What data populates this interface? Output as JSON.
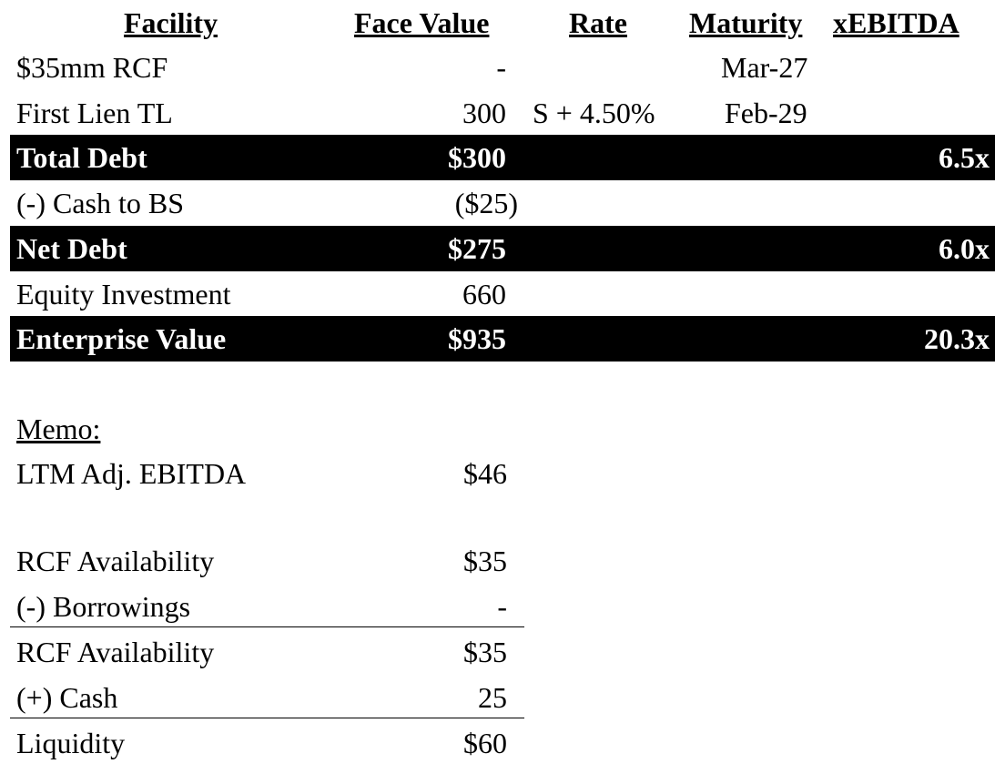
{
  "header": {
    "facility": "Facility",
    "face_value": "Face Value",
    "rate": "Rate",
    "maturity": "Maturity",
    "xebitda": "xEBITDA"
  },
  "rows": [
    {
      "label": "$35mm RCF",
      "face": "-",
      "rate": "",
      "maturity": "Mar-27",
      "mult": ""
    },
    {
      "label": "First Lien TL",
      "face": "300",
      "rate": "S + 4.50%",
      "maturity": "Feb-29",
      "mult": ""
    },
    {
      "label": "Total Debt",
      "face": "$300",
      "rate": "",
      "maturity": "",
      "mult": "6.5x"
    },
    {
      "label": "(-) Cash to BS",
      "face": "($25)",
      "rate": "",
      "maturity": "",
      "mult": ""
    },
    {
      "label": "Net Debt",
      "face": "$275",
      "rate": "",
      "maturity": "",
      "mult": "6.0x"
    },
    {
      "label": "Equity Investment",
      "face": "660",
      "rate": "",
      "maturity": "",
      "mult": ""
    },
    {
      "label": "Enterprise Value",
      "face": "$935",
      "rate": "",
      "maturity": "",
      "mult": "20.3x"
    }
  ],
  "memo": {
    "title": "Memo:",
    "ltm_label": "LTM Adj. EBITDA",
    "ltm_value": "$46",
    "rcf_avail_label": "RCF Availability",
    "rcf_avail_value": "$35",
    "borrowings_label": "(-) Borrowings",
    "borrowings_value": "-",
    "rcf_avail2_label": "RCF Availability",
    "rcf_avail2_value": "$35",
    "cash_label": "(+) Cash",
    "cash_value": "25",
    "liquidity_label": "Liquidity",
    "liquidity_value": "$60"
  }
}
